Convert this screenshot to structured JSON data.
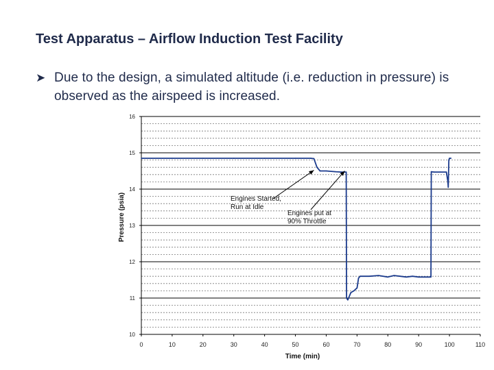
{
  "slide": {
    "title": "Test Apparatus – Airflow Induction Test Facility",
    "bullet_icon": "arrow-bullet-icon",
    "bullet_text": "Due to the design, a simulated altitude (i.e. reduction in pressure) is observed as the airspeed is increased."
  },
  "chart_data": {
    "type": "line",
    "title": "",
    "xlabel": "Time (min)",
    "ylabel": "Pressure (psia)",
    "xlim": [
      0,
      110
    ],
    "ylim": [
      10,
      16
    ],
    "x_ticks": [
      0,
      10,
      20,
      30,
      40,
      50,
      60,
      70,
      80,
      90,
      100,
      110
    ],
    "y_ticks": [
      10,
      11,
      12,
      13,
      14,
      15,
      16
    ],
    "grid": true,
    "series": [
      {
        "color": "#1a3a8c",
        "x": [
          0,
          10,
          20,
          30,
          40,
          50,
          55,
          56,
          57,
          58,
          60,
          63,
          65,
          66.5,
          66.6,
          67,
          68,
          69,
          70,
          70.5,
          71,
          74,
          77,
          80,
          82,
          84,
          86,
          88,
          90,
          92,
          94,
          94.1,
          95,
          97,
          99,
          99.5,
          99.6,
          99.8,
          100,
          100.5
        ],
        "y": [
          14.85,
          14.85,
          14.85,
          14.85,
          14.85,
          14.85,
          14.85,
          14.84,
          14.6,
          14.5,
          14.5,
          14.48,
          14.47,
          14.47,
          11.0,
          10.95,
          11.15,
          11.2,
          11.28,
          11.55,
          11.6,
          11.6,
          11.62,
          11.58,
          11.62,
          11.6,
          11.58,
          11.6,
          11.58,
          11.58,
          11.58,
          14.48,
          14.47,
          14.47,
          14.47,
          14.2,
          14.05,
          14.8,
          14.85,
          14.85
        ]
      }
    ],
    "annotations": [
      {
        "text_lines": [
          "Engines Started,",
          "Run at Idle"
        ],
        "points_to": [
          56,
          14.52
        ]
      },
      {
        "text_lines": [
          "Engines put at",
          "90% Throttle"
        ],
        "points_to": [
          66,
          14.5
        ]
      }
    ]
  }
}
